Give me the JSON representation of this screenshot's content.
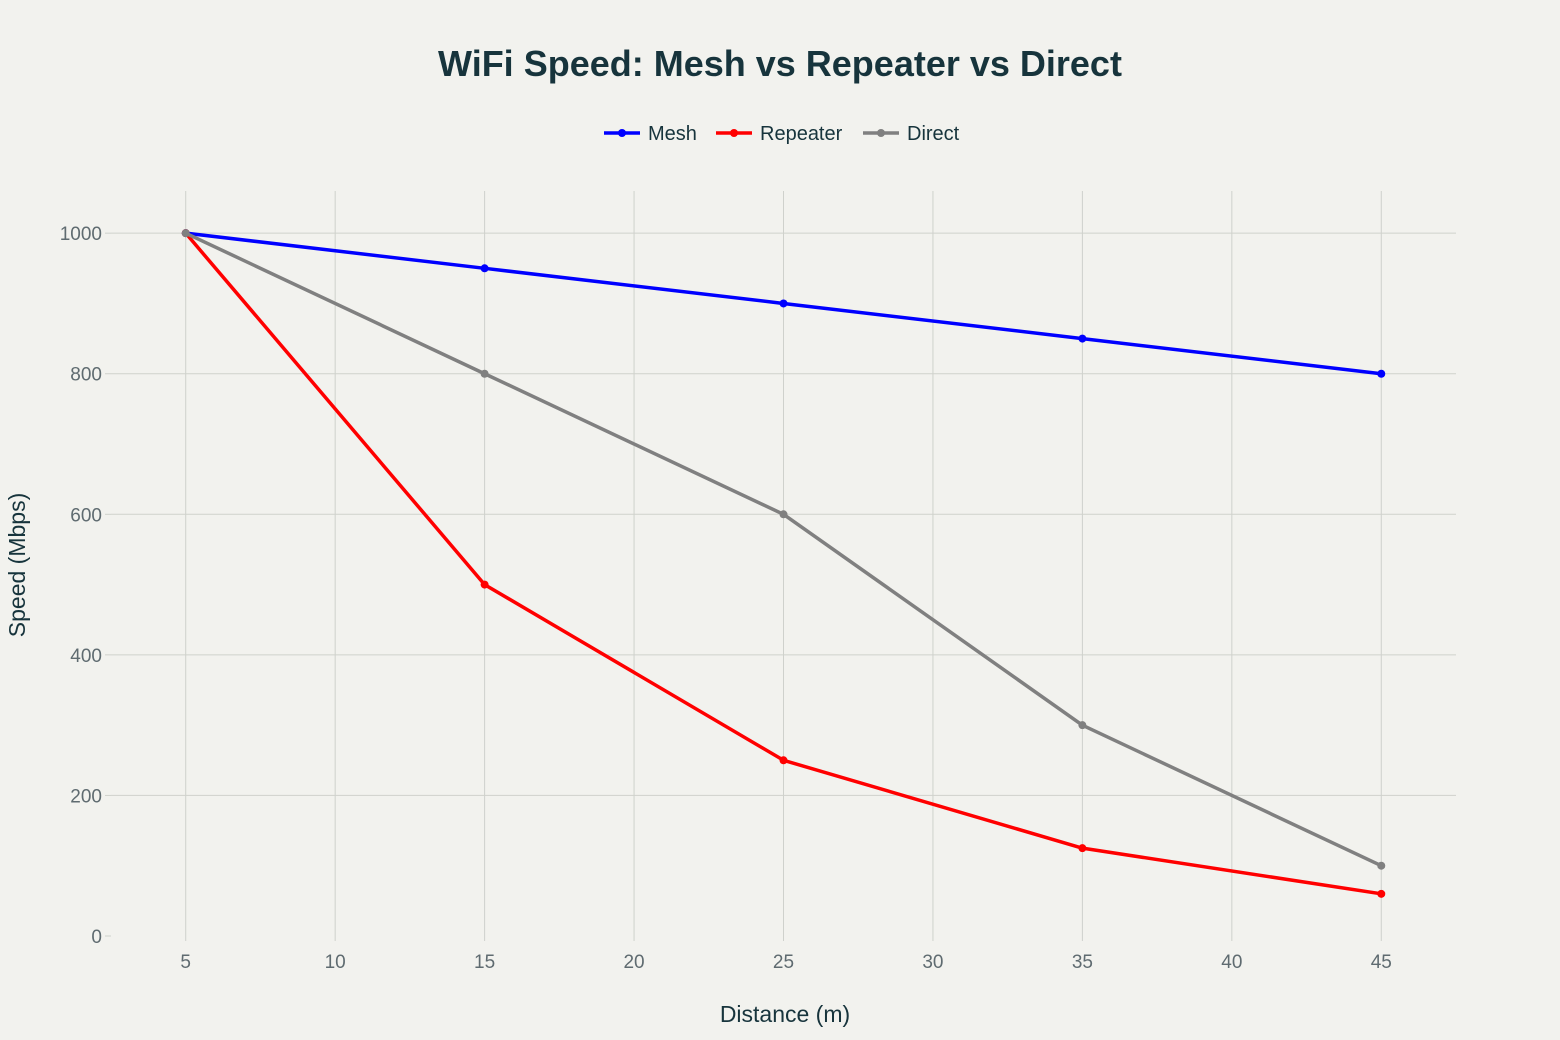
{
  "chart_data": {
    "type": "line",
    "title": "WiFi Speed: Mesh vs Repeater vs Direct",
    "xlabel": "Distance (m)",
    "ylabel": "Speed (Mbps)",
    "x": [
      5,
      15,
      25,
      35,
      45
    ],
    "xlim": [
      2.5,
      47.5
    ],
    "ylim": [
      0,
      1060
    ],
    "x_ticks": [
      5,
      10,
      15,
      20,
      25,
      30,
      35,
      40,
      45
    ],
    "y_ticks": [
      0,
      200,
      400,
      600,
      800,
      1000
    ],
    "grid": true,
    "legend_position": "top-center",
    "series": [
      {
        "name": "Mesh",
        "color": "#0000ff",
        "values": [
          1000,
          950,
          900,
          850,
          800
        ]
      },
      {
        "name": "Repeater",
        "color": "#ff0000",
        "values": [
          1000,
          500,
          250,
          125,
          60
        ]
      },
      {
        "name": "Direct",
        "color": "#808080",
        "values": [
          1000,
          800,
          600,
          300,
          100
        ]
      }
    ]
  }
}
